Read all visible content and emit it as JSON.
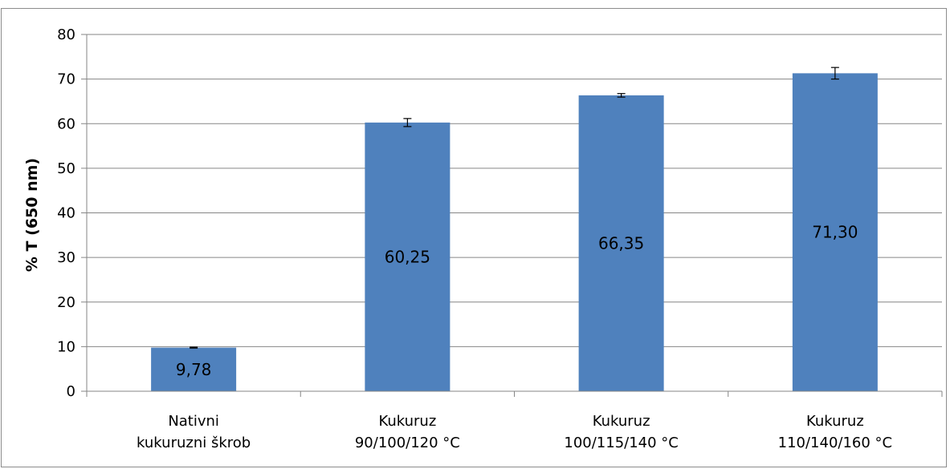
{
  "chart_data": {
    "type": "bar",
    "categories": [
      [
        "Nativni",
        "kukuruzni škrob"
      ],
      [
        "Kukuruz",
        "90/100/120 °C"
      ],
      [
        "Kukuruz",
        "100/115/140 °C"
      ],
      [
        "Kukuruz",
        "110/140/160 °C"
      ]
    ],
    "values": [
      9.78,
      60.25,
      66.35,
      71.3
    ],
    "data_labels": [
      "9,78",
      "60,25",
      "66,35",
      "71,30"
    ],
    "error": [
      0.1,
      0.9,
      0.4,
      1.3
    ],
    "ylabel": "% T (650 nm)",
    "xlabel": "",
    "title": "",
    "ylim": [
      0,
      80
    ],
    "yticks": [
      0,
      10,
      20,
      30,
      40,
      50,
      60,
      70,
      80
    ],
    "grid": true,
    "legend": "none",
    "bar_color": "#4f81bd",
    "grid_color": "#868686"
  }
}
